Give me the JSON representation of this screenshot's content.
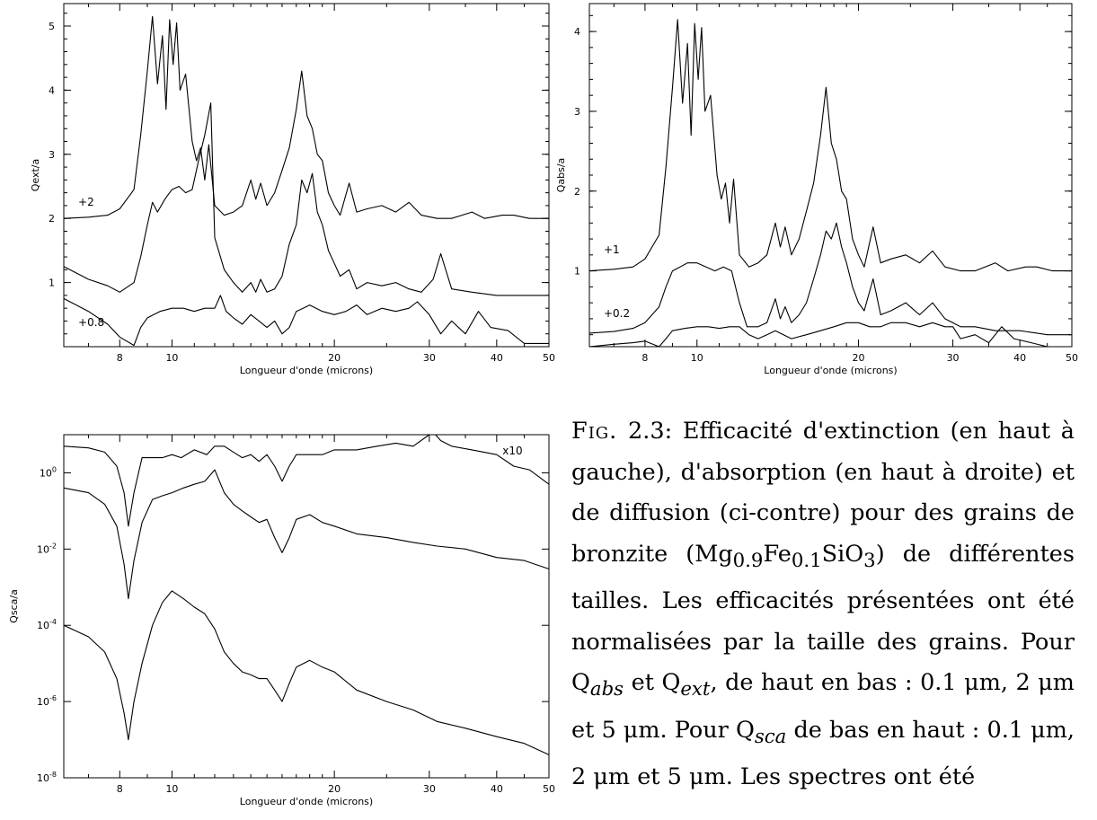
{
  "chart_data": [
    {
      "id": "ext",
      "type": "line",
      "xlabel": "Longueur d'onde (microns)",
      "ylabel": "Qext/a",
      "xscale": "log",
      "xlim": [
        6.3,
        50
      ],
      "ylim": [
        0,
        5.35
      ],
      "xticks": [
        8,
        10,
        20,
        30,
        40,
        50
      ],
      "xtick_labels": [
        "8",
        "10",
        "20",
        "30",
        "40",
        "50"
      ],
      "yticks": [
        1,
        2,
        3,
        4,
        5
      ],
      "ytick_labels": [
        "1",
        "2",
        "3",
        "4",
        "5"
      ],
      "annotations": [
        {
          "text": "+2",
          "x": 6.7,
          "y": 2.2
        },
        {
          "text": "+0.8",
          "x": 6.7,
          "y": 0.32
        }
      ],
      "series": [
        {
          "x": [
            6.3,
            7.0,
            7.6,
            8.0,
            8.5,
            8.75,
            9.0,
            9.2,
            9.4,
            9.6,
            9.75,
            9.9,
            10.05,
            10.2,
            10.35,
            10.6,
            10.9,
            11.1,
            11.3,
            11.5,
            11.7,
            12.0,
            12.5,
            13.0,
            13.5,
            14.0,
            14.3,
            14.6,
            15.0,
            15.5,
            16.0,
            16.5,
            17.0,
            17.4,
            17.8,
            18.2,
            18.6,
            19.0,
            19.5,
            20.0,
            20.5,
            21.3,
            22.0,
            23.0,
            24.5,
            26.0,
            27.5,
            29.0,
            31.0,
            33.0,
            36.0,
            38.0,
            41.0,
            43.0,
            46.0,
            50.0
          ],
          "y": [
            2.0,
            2.02,
            2.05,
            2.15,
            2.45,
            3.3,
            4.3,
            5.15,
            4.1,
            4.85,
            3.7,
            5.1,
            4.4,
            5.05,
            4.0,
            4.25,
            3.2,
            2.9,
            3.1,
            2.6,
            3.15,
            2.2,
            2.05,
            2.1,
            2.2,
            2.6,
            2.3,
            2.55,
            2.2,
            2.4,
            2.75,
            3.1,
            3.7,
            4.3,
            3.6,
            3.4,
            3.0,
            2.9,
            2.4,
            2.2,
            2.05,
            2.55,
            2.1,
            2.15,
            2.2,
            2.1,
            2.25,
            2.05,
            2.0,
            2.0,
            2.1,
            2.0,
            2.05,
            2.05,
            2.0,
            2.0
          ]
        },
        {
          "x": [
            6.3,
            7.0,
            7.6,
            8.0,
            8.5,
            8.75,
            9.0,
            9.2,
            9.4,
            9.7,
            10.0,
            10.3,
            10.6,
            10.9,
            11.2,
            11.5,
            11.8,
            12.0,
            12.5,
            13.0,
            13.5,
            14.0,
            14.3,
            14.6,
            15.0,
            15.5,
            16.0,
            16.5,
            17.0,
            17.4,
            17.8,
            18.2,
            18.6,
            19.0,
            19.5,
            20.0,
            20.5,
            21.3,
            22.0,
            23.0,
            24.5,
            26.0,
            27.5,
            29.0,
            30.5,
            31.5,
            33.0,
            36.0,
            40.0,
            45.0,
            50.0
          ],
          "y": [
            1.25,
            1.05,
            0.95,
            0.85,
            1.0,
            1.4,
            1.9,
            2.25,
            2.1,
            2.3,
            2.45,
            2.5,
            2.4,
            2.45,
            2.9,
            3.3,
            3.8,
            1.7,
            1.2,
            1.0,
            0.85,
            1.0,
            0.85,
            1.05,
            0.85,
            0.9,
            1.1,
            1.6,
            1.9,
            2.6,
            2.4,
            2.7,
            2.1,
            1.9,
            1.5,
            1.3,
            1.1,
            1.2,
            0.9,
            1.0,
            0.95,
            1.0,
            0.9,
            0.85,
            1.05,
            1.45,
            0.9,
            0.85,
            0.8,
            0.8,
            0.8
          ]
        },
        {
          "x": [
            6.3,
            7.0,
            7.6,
            8.0,
            8.5,
            8.75,
            9.0,
            9.5,
            10.0,
            10.5,
            11.0,
            11.5,
            12.0,
            12.3,
            12.6,
            13.0,
            13.5,
            14.0,
            14.5,
            15.0,
            15.5,
            16.0,
            16.5,
            17.0,
            17.5,
            18.0,
            18.5,
            19.0,
            20.0,
            21.0,
            22.0,
            23.0,
            24.5,
            26.0,
            27.5,
            28.5,
            30.0,
            31.5,
            33.0,
            35.0,
            37.0,
            39.0,
            42.0,
            45.0,
            48.0,
            50.0
          ],
          "y": [
            0.75,
            0.55,
            0.35,
            0.15,
            0.02,
            0.3,
            0.45,
            0.55,
            0.6,
            0.6,
            0.55,
            0.6,
            0.6,
            0.8,
            0.55,
            0.45,
            0.35,
            0.5,
            0.4,
            0.3,
            0.4,
            0.2,
            0.3,
            0.55,
            0.6,
            0.65,
            0.6,
            0.55,
            0.5,
            0.55,
            0.65,
            0.5,
            0.6,
            0.55,
            0.6,
            0.7,
            0.5,
            0.2,
            0.4,
            0.2,
            0.55,
            0.3,
            0.25,
            0.05,
            0.05,
            0.05
          ]
        }
      ]
    },
    {
      "id": "abs",
      "type": "line",
      "xlabel": "Longueur d'onde (microns)",
      "ylabel": "Qabs/a",
      "xscale": "log",
      "xlim": [
        6.3,
        50
      ],
      "ylim": [
        0.05,
        4.35
      ],
      "xticks": [
        8,
        10,
        20,
        30,
        40,
        50
      ],
      "xtick_labels": [
        "8",
        "10",
        "20",
        "30",
        "40",
        "50"
      ],
      "yticks": [
        1,
        2,
        3,
        4
      ],
      "ytick_labels": [
        "1",
        "2",
        "3",
        "4"
      ],
      "annotations": [
        {
          "text": "+1",
          "x": 6.7,
          "y": 1.22
        },
        {
          "text": "+0.2",
          "x": 6.7,
          "y": 0.42
        }
      ],
      "series": [
        {
          "x": [
            6.3,
            7.0,
            7.6,
            8.0,
            8.5,
            8.75,
            9.0,
            9.2,
            9.4,
            9.6,
            9.75,
            9.9,
            10.05,
            10.2,
            10.35,
            10.6,
            10.9,
            11.1,
            11.3,
            11.5,
            11.7,
            12.0,
            12.5,
            13.0,
            13.5,
            14.0,
            14.3,
            14.6,
            15.0,
            15.5,
            16.0,
            16.5,
            17.0,
            17.4,
            17.8,
            18.2,
            18.6,
            19.0,
            19.5,
            20.0,
            20.5,
            21.3,
            22.0,
            23.0,
            24.5,
            26.0,
            27.5,
            29.0,
            31.0,
            33.0,
            36.0,
            38.0,
            41.0,
            43.0,
            46.0,
            50.0
          ],
          "y": [
            1.0,
            1.02,
            1.05,
            1.15,
            1.45,
            2.3,
            3.3,
            4.15,
            3.1,
            3.85,
            2.7,
            4.1,
            3.4,
            4.05,
            3.0,
            3.2,
            2.2,
            1.9,
            2.1,
            1.6,
            2.15,
            1.2,
            1.05,
            1.1,
            1.2,
            1.6,
            1.3,
            1.55,
            1.2,
            1.4,
            1.75,
            2.1,
            2.7,
            3.3,
            2.6,
            2.4,
            2.0,
            1.9,
            1.4,
            1.2,
            1.05,
            1.55,
            1.1,
            1.15,
            1.2,
            1.1,
            1.25,
            1.05,
            1.0,
            1.0,
            1.1,
            1.0,
            1.05,
            1.05,
            1.0,
            1.0
          ]
        },
        {
          "x": [
            6.3,
            7.0,
            7.6,
            8.0,
            8.5,
            8.75,
            9.0,
            9.3,
            9.6,
            10.0,
            10.4,
            10.8,
            11.2,
            11.6,
            12.0,
            12.4,
            13.0,
            13.5,
            14.0,
            14.3,
            14.6,
            15.0,
            15.5,
            16.0,
            16.5,
            17.0,
            17.4,
            17.8,
            18.2,
            18.6,
            19.0,
            19.5,
            20.0,
            20.5,
            21.3,
            22.0,
            23.0,
            24.5,
            26.0,
            27.5,
            29.0,
            31.0,
            33.0,
            36.0,
            40.0,
            45.0,
            50.0
          ],
          "y": [
            0.22,
            0.24,
            0.28,
            0.35,
            0.55,
            0.8,
            1.0,
            1.05,
            1.1,
            1.1,
            1.05,
            1.0,
            1.05,
            1.0,
            0.6,
            0.3,
            0.3,
            0.35,
            0.65,
            0.4,
            0.55,
            0.35,
            0.45,
            0.6,
            0.9,
            1.2,
            1.5,
            1.4,
            1.6,
            1.3,
            1.1,
            0.8,
            0.6,
            0.5,
            0.9,
            0.45,
            0.5,
            0.6,
            0.45,
            0.6,
            0.4,
            0.3,
            0.3,
            0.25,
            0.25,
            0.2,
            0.2
          ]
        },
        {
          "x": [
            6.3,
            7.0,
            7.6,
            8.0,
            8.5,
            8.75,
            9.0,
            9.5,
            10.0,
            10.5,
            11.0,
            11.5,
            12.0,
            12.5,
            13.0,
            13.5,
            14.0,
            15.0,
            16.0,
            17.0,
            18.0,
            19.0,
            20.0,
            21.0,
            22.0,
            23.0,
            24.5,
            26.0,
            27.5,
            29.0,
            30.0,
            31.0,
            33.0,
            35.0,
            37.0,
            39.0,
            42.0,
            45.0,
            48.0,
            50.0
          ],
          "y": [
            0.05,
            0.08,
            0.1,
            0.12,
            0.05,
            0.15,
            0.25,
            0.28,
            0.3,
            0.3,
            0.28,
            0.3,
            0.3,
            0.2,
            0.15,
            0.2,
            0.25,
            0.15,
            0.2,
            0.25,
            0.3,
            0.35,
            0.35,
            0.3,
            0.3,
            0.35,
            0.35,
            0.3,
            0.35,
            0.3,
            0.3,
            0.15,
            0.2,
            0.1,
            0.3,
            0.15,
            0.1,
            0.05,
            0.05,
            0.05
          ]
        }
      ]
    },
    {
      "id": "sca",
      "type": "line",
      "xlabel": "Longueur d'onde (microns)",
      "ylabel": "Qsca/a",
      "xscale": "log",
      "yscale": "log",
      "xlim": [
        6.3,
        50
      ],
      "ylim": [
        1e-08,
        10
      ],
      "xticks": [
        8,
        10,
        20,
        30,
        40,
        50
      ],
      "xtick_labels": [
        "8",
        "10",
        "20",
        "30",
        "40",
        "50"
      ],
      "yticks": [
        1e-08,
        1e-06,
        0.0001,
        0.01,
        1
      ],
      "ytick_base": "10",
      "ytick_exponents": [
        "-8",
        "-6",
        "-4",
        "-2",
        "0"
      ],
      "annotations": [
        {
          "text": "x10",
          "x": 41,
          "y": 3
        }
      ],
      "series": [
        {
          "x": [
            6.3,
            7.0,
            7.5,
            7.9,
            8.15,
            8.3,
            8.5,
            8.8,
            9.2,
            9.6,
            10.0,
            10.4,
            11.0,
            11.6,
            12.0,
            12.5,
            13.0,
            13.5,
            14.0,
            14.5,
            15.0,
            15.5,
            16.0,
            16.5,
            17.0,
            18.0,
            19.0,
            20.0,
            22.0,
            24.0,
            26.0,
            28.0,
            30.0,
            30.8,
            31.5,
            33.0,
            36.0,
            40.0,
            43.0,
            46.0,
            50.0
          ],
          "y": [
            5,
            4.5,
            3.5,
            1.5,
            0.3,
            0.04,
            0.3,
            2.5,
            2.5,
            2.5,
            3,
            2.5,
            4,
            3,
            5,
            5,
            3.5,
            2.5,
            3,
            2,
            3,
            1.5,
            0.6,
            1.5,
            3,
            3,
            3,
            4,
            4,
            5,
            6,
            5,
            10,
            11,
            7,
            5,
            4,
            3,
            1.5,
            1.2,
            0.5
          ]
        },
        {
          "x": [
            6.3,
            7.0,
            7.5,
            7.9,
            8.15,
            8.3,
            8.5,
            8.8,
            9.2,
            9.6,
            10.0,
            10.5,
            11.0,
            11.5,
            12.0,
            12.5,
            13.0,
            13.5,
            14.0,
            14.5,
            15.0,
            15.5,
            16.0,
            16.5,
            17.0,
            18.0,
            19.0,
            20.0,
            22.0,
            25.0,
            28.0,
            31.0,
            35.0,
            40.0,
            45.0,
            50.0
          ],
          "y": [
            0.4,
            0.3,
            0.15,
            0.04,
            0.004,
            0.0005,
            0.005,
            0.05,
            0.2,
            0.25,
            0.3,
            0.4,
            0.5,
            0.6,
            1.2,
            0.3,
            0.15,
            0.1,
            0.07,
            0.05,
            0.06,
            0.02,
            0.008,
            0.02,
            0.06,
            0.08,
            0.05,
            0.04,
            0.025,
            0.02,
            0.015,
            0.012,
            0.01,
            0.006,
            0.005,
            0.003
          ]
        },
        {
          "x": [
            6.3,
            7.0,
            7.5,
            7.9,
            8.15,
            8.3,
            8.5,
            8.8,
            9.2,
            9.6,
            10.0,
            10.5,
            11.0,
            11.5,
            12.0,
            12.5,
            13.0,
            13.5,
            14.0,
            14.5,
            15.0,
            15.5,
            16.0,
            16.5,
            17.0,
            18.0,
            19.0,
            20.0,
            22.0,
            25.0,
            28.0,
            31.0,
            35.0,
            40.0,
            45.0,
            50.0
          ],
          "y": [
            0.0001,
            5e-05,
            2e-05,
            4e-06,
            5e-07,
            1e-07,
            1e-06,
            1e-05,
            0.0001,
            0.0004,
            0.0008,
            0.0005,
            0.0003,
            0.0002,
            8e-05,
            2e-05,
            1e-05,
            6e-06,
            5e-06,
            4e-06,
            4e-06,
            2e-06,
            1e-06,
            3e-06,
            8e-06,
            1.2e-05,
            8e-06,
            6e-06,
            2e-06,
            1e-06,
            6e-07,
            3e-07,
            2e-07,
            1.2e-07,
            8e-08,
            4e-08
          ]
        }
      ]
    }
  ],
  "caption": {
    "fig": "Fig.",
    "num": "2.3:",
    "p1": "Efficacité d'extinction (en haut à gauche), d'absorption (en haut à droite) et de diffusion (ci-contre) pour des grains de bronzite (Mg",
    "s1": "0.9",
    "p2": "Fe",
    "s2": "0.1",
    "p3": "SiO",
    "s3": "3",
    "p4": ") de différentes tailles. Les efficacités présentées ont été normalisées par la taille des grains. Pour Q",
    "s4": "abs",
    "p5": " et Q",
    "s5": "ext",
    "p6": ", de haut en bas : 0.1 μm, 2 μm et 5 μm. Pour Q",
    "s6": "sca",
    "p7": " de bas en haut : 0.1 μm, 2 μm et 5 μm. Les spectres ont été"
  }
}
